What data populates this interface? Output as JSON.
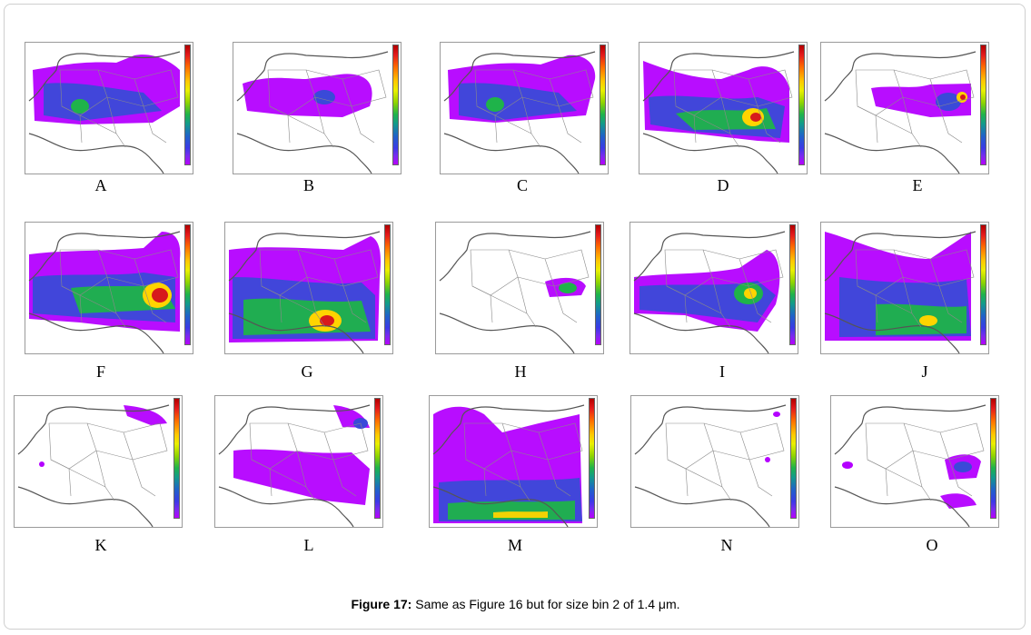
{
  "figure": {
    "caption_label": "Figure 17:",
    "caption_text": " Same as Figure 16 but for size bin 2 of 1.4 μm."
  },
  "panels": [
    {
      "label": "A"
    },
    {
      "label": "B"
    },
    {
      "label": "C"
    },
    {
      "label": "D"
    },
    {
      "label": "E"
    },
    {
      "label": "F"
    },
    {
      "label": "G"
    },
    {
      "label": "H"
    },
    {
      "label": "I"
    },
    {
      "label": "J"
    },
    {
      "label": "K"
    },
    {
      "label": "L"
    },
    {
      "label": "M"
    },
    {
      "label": "N"
    },
    {
      "label": "O"
    }
  ],
  "colors": {
    "high": "#d7191c",
    "mid": "#ffd400",
    "green": "#1fb34a",
    "blue": "#3a4ad8",
    "low": "#b400ff",
    "land_outline": "#555555"
  }
}
